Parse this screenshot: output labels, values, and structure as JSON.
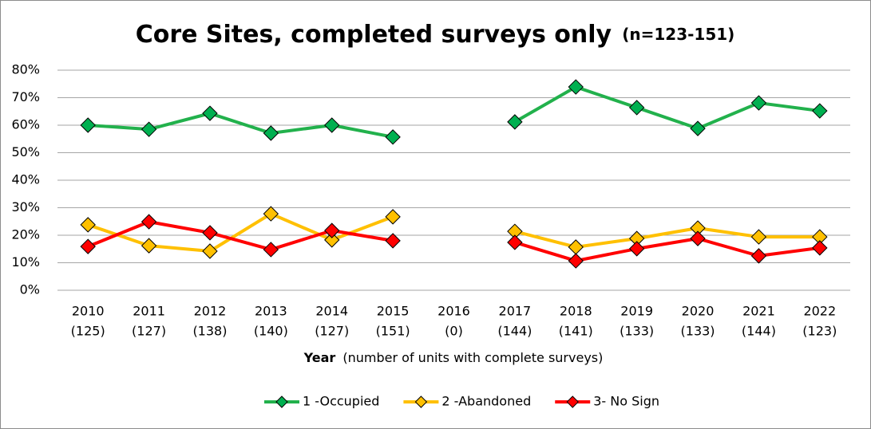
{
  "chart_data": {
    "type": "line",
    "title": "Core Sites, completed surveys only",
    "subtitle": "(n=123-151)",
    "x_label": "Year",
    "x_label_note": "(number of units with complete surveys)",
    "categories": [
      "2010",
      "2011",
      "2012",
      "2013",
      "2014",
      "2015",
      "2016",
      "2017",
      "2018",
      "2019",
      "2020",
      "2021",
      "2022"
    ],
    "category_counts": [
      "(125)",
      "(127)",
      "(138)",
      "(140)",
      "(127)",
      "(151)",
      "(0)",
      "(144)",
      "(141)",
      "(133)",
      "(133)",
      "(144)",
      "(123)"
    ],
    "series": [
      {
        "name": "1 -Occupied",
        "color": "#22b14c",
        "marker_color": "#00b050",
        "values": [
          60,
          58.5,
          64.3,
          57.1,
          60,
          55.7,
          null,
          61.2,
          73.9,
          66.4,
          58.8,
          68.1,
          65.2
        ]
      },
      {
        "name": "2 -Abandoned",
        "color": "#ffc000",
        "marker_color": "#ffc000",
        "values": [
          23.8,
          16.2,
          14.2,
          27.8,
          18.3,
          26.7,
          null,
          21.4,
          15.7,
          18.8,
          22.6,
          19.4,
          19.4
        ]
      },
      {
        "name": "3- No Sign",
        "color": "#ff0000",
        "marker_color": "#ff0000",
        "values": [
          15.9,
          24.9,
          20.9,
          14.8,
          21.7,
          18.0,
          null,
          17.4,
          10.7,
          15.1,
          18.8,
          12.5,
          15.4
        ]
      }
    ],
    "ylim": [
      0,
      80
    ],
    "yticks": [
      {
        "value": 0,
        "label": "0%"
      },
      {
        "value": 10,
        "label": "10%"
      },
      {
        "value": 20,
        "label": "20%"
      },
      {
        "value": 30,
        "label": "30%"
      },
      {
        "value": 40,
        "label": "40%"
      },
      {
        "value": 50,
        "label": "50%"
      },
      {
        "value": 60,
        "label": "60%"
      },
      {
        "value": 70,
        "label": "70%"
      },
      {
        "value": 80,
        "label": "80%"
      }
    ],
    "grid": true,
    "legend": "bottom"
  }
}
